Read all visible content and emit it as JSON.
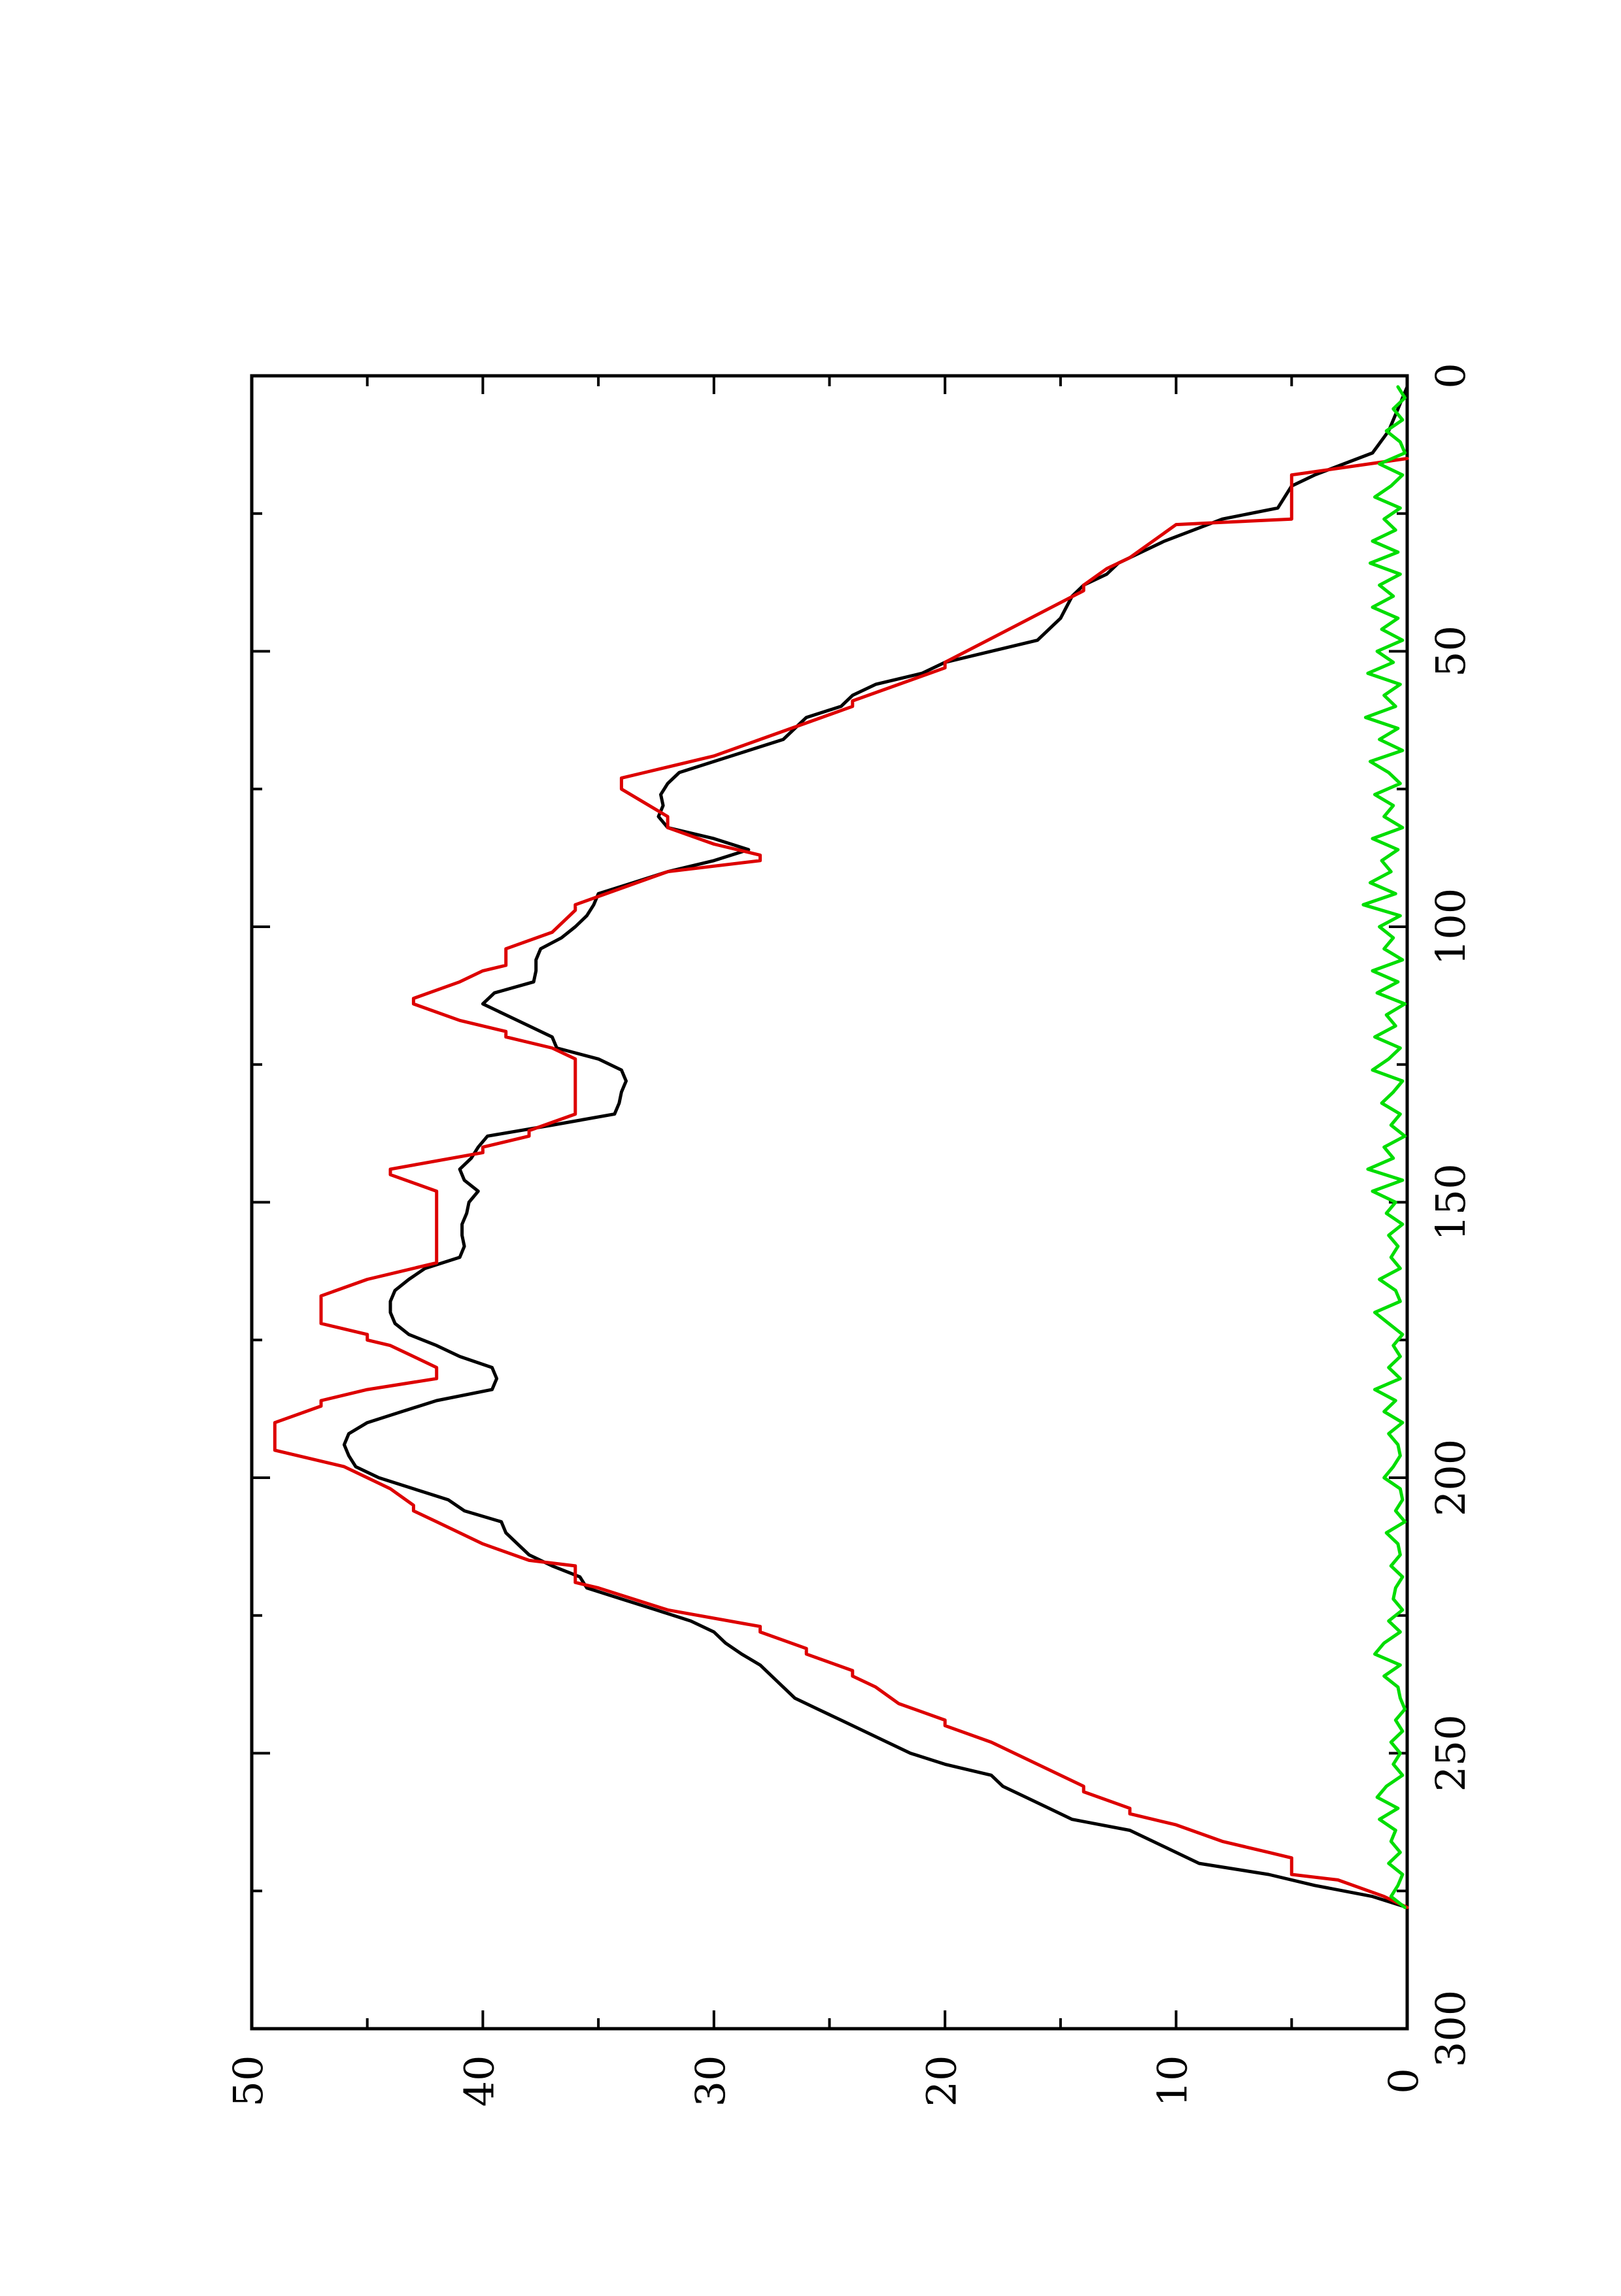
{
  "chart_data": {
    "type": "line",
    "title": "",
    "xlabel": "",
    "ylabel": "",
    "xlim": [
      0,
      300
    ],
    "ylim": [
      0,
      50
    ],
    "x_ticks": [
      0,
      50,
      100,
      150,
      200,
      250,
      300
    ],
    "x_tick_labels": [
      "0",
      "50",
      "100",
      "150",
      "200",
      "250",
      "300"
    ],
    "y_ticks": [
      0,
      10,
      20,
      30,
      40,
      50
    ],
    "y_tick_labels": [
      "0",
      "10",
      "20",
      "30",
      "40",
      "50"
    ],
    "orientation": "rotated-90-ccw",
    "grid": false,
    "legend": "none",
    "colors": {
      "black": "#000000",
      "red": "#dd0000",
      "green": "#00dd00"
    },
    "series": [
      {
        "color": "#000000",
        "x": [
          2,
          6,
          10,
          14,
          18,
          20,
          24,
          26,
          30,
          32,
          34,
          36,
          38,
          40,
          44,
          48,
          52,
          54,
          56,
          58,
          60,
          62,
          64,
          66,
          68,
          70,
          72,
          74,
          76,
          78,
          80,
          82,
          84,
          86,
          88,
          90,
          92,
          94,
          96,
          98,
          100,
          102,
          104,
          106,
          108,
          110,
          112,
          114,
          116,
          118,
          120,
          122,
          124,
          126,
          128,
          130,
          132,
          134,
          136,
          138,
          140,
          142,
          144,
          146,
          148,
          150,
          152,
          154,
          156,
          158,
          160,
          162,
          164,
          166,
          168,
          170,
          172,
          174,
          176,
          178,
          180,
          182,
          184,
          186,
          188,
          190,
          192,
          194,
          196,
          198,
          200,
          202,
          204,
          206,
          208,
          210,
          212,
          214,
          216,
          218,
          220,
          222,
          224,
          226,
          228,
          230,
          232,
          234,
          236,
          238,
          240,
          242,
          244,
          246,
          248,
          250,
          252,
          254,
          256,
          258,
          260,
          262,
          264,
          266,
          268,
          270,
          272,
          274,
          276,
          278
        ],
        "values": [
          0,
          0.4,
          0.8,
          1.5,
          4,
          5,
          5.6,
          8,
          10.5,
          11.5,
          12.5,
          13,
          14,
          14.5,
          15,
          16,
          20,
          21,
          23,
          24,
          24.5,
          26,
          26.5,
          27,
          28.5,
          30,
          31.5,
          32,
          32.3,
          32.2,
          32.4,
          32,
          30,
          28.5,
          30,
          32,
          33.5,
          35,
          35.2,
          35.5,
          36,
          36.6,
          37.5,
          37.7,
          37.7,
          37.8,
          39.5,
          40,
          39,
          38,
          37,
          36.8,
          35,
          34,
          33.8,
          34,
          34.1,
          34.3,
          37,
          39.8,
          40.2,
          40.5,
          41,
          40.8,
          40.2,
          40.6,
          40.7,
          40.9,
          40.9,
          40.8,
          41,
          42.5,
          43.2,
          43.8,
          44,
          44,
          43.8,
          43.2,
          42,
          41,
          39.6,
          39.4,
          39.6,
          42,
          43.5,
          45,
          45.8,
          46,
          45.8,
          45.5,
          44.5,
          43,
          41.5,
          40.8,
          39.2,
          39,
          38.5,
          38,
          37,
          35.8,
          35.5,
          34,
          32.5,
          31,
          30,
          29.5,
          28.8,
          28,
          27.5,
          27,
          26.5,
          25.5,
          24.5,
          23.5,
          22.5,
          21.5,
          20,
          18,
          17.5,
          16.5,
          15.5,
          14.5,
          12,
          11,
          10,
          9,
          6,
          4,
          1.5,
          0
        ]
      },
      {
        "color": "#dd0000",
        "x": [
          15,
          18,
          26,
          27,
          30,
          33,
          35,
          38,
          39,
          52,
          53,
          56,
          59,
          60,
          63,
          66,
          69,
          72,
          73,
          75,
          80,
          82,
          85,
          87,
          88,
          90,
          93,
          96,
          97,
          101,
          104,
          107,
          108,
          110,
          113,
          114,
          117,
          119,
          120,
          122,
          124,
          126,
          130,
          134,
          137,
          138,
          140,
          141,
          144,
          145,
          148,
          150,
          153,
          160,
          161,
          164,
          167,
          170,
          172,
          174,
          175,
          176,
          178,
          180,
          182,
          184,
          186,
          187,
          190,
          191,
          195,
          196,
          198,
          202,
          205,
          206,
          208,
          212,
          215,
          216,
          219,
          220,
          224,
          227,
          228,
          231,
          232,
          235,
          236,
          238,
          241,
          244,
          245,
          248,
          254,
          256,
          257,
          260,
          261,
          263,
          266,
          268,
          269,
          272,
          273,
          276,
          278
        ],
        "values": [
          0,
          5,
          5,
          10,
          11,
          12,
          13,
          14,
          14,
          20,
          20,
          22,
          24,
          24,
          26,
          28,
          30,
          33,
          34,
          34,
          32,
          32,
          30,
          28,
          28,
          32,
          34,
          36,
          36,
          37,
          39,
          39,
          40,
          41,
          43,
          43,
          41,
          39,
          39,
          37,
          36,
          36,
          36,
          36,
          38,
          38,
          40,
          40,
          44,
          44,
          42,
          42,
          42,
          42,
          42,
          45,
          47,
          47,
          47,
          45,
          45,
          44,
          43,
          42,
          42,
          45,
          47,
          47,
          49,
          49,
          49,
          48,
          46,
          44,
          43,
          43,
          42,
          40,
          38,
          36,
          36,
          35,
          32,
          28,
          28,
          26,
          26,
          24,
          24,
          23,
          22,
          20,
          20,
          18,
          15,
          14,
          14,
          12,
          12,
          10,
          8,
          6,
          5,
          5,
          3,
          1,
          0
        ]
      },
      {
        "color": "#00dd00",
        "x": [
          2,
          4,
          6,
          8,
          10,
          12,
          14,
          16,
          18,
          20,
          22,
          24,
          26,
          28,
          30,
          32,
          34,
          36,
          38,
          40,
          42,
          44,
          46,
          48,
          50,
          52,
          54,
          56,
          58,
          60,
          62,
          64,
          66,
          68,
          70,
          72,
          74,
          76,
          78,
          80,
          82,
          84,
          86,
          88,
          90,
          92,
          94,
          96,
          98,
          100,
          102,
          104,
          106,
          108,
          110,
          112,
          114,
          116,
          118,
          120,
          122,
          124,
          126,
          128,
          130,
          132,
          134,
          136,
          138,
          140,
          142,
          144,
          146,
          148,
          150,
          152,
          154,
          156,
          158,
          160,
          162,
          164,
          166,
          168,
          170,
          172,
          174,
          176,
          178,
          180,
          182,
          184,
          186,
          188,
          190,
          192,
          194,
          196,
          198,
          200,
          202,
          204,
          206,
          208,
          210,
          212,
          214,
          216,
          218,
          220,
          222,
          224,
          226,
          228,
          230,
          232,
          234,
          236,
          238,
          240,
          242,
          244,
          246,
          248,
          250,
          252,
          254,
          256,
          258,
          260,
          262,
          264,
          266,
          268,
          270,
          272,
          274,
          276,
          278
        ],
        "values": [
          0.4,
          0.1,
          0.6,
          0.2,
          0.9,
          0.3,
          0.1,
          1.2,
          0.2,
          0.7,
          1.4,
          0.3,
          1.0,
          0.5,
          1.5,
          0.4,
          1.6,
          0.3,
          1.2,
          0.6,
          1.5,
          0.4,
          1.1,
          0.2,
          1.3,
          0.6,
          1.7,
          0.3,
          1.0,
          0.5,
          1.8,
          0.4,
          1.2,
          0.2,
          1.6,
          0.8,
          0.3,
          1.4,
          0.6,
          1.0,
          0.2,
          1.5,
          0.4,
          1.1,
          0.7,
          1.6,
          0.5,
          1.9,
          0.3,
          1.2,
          0.6,
          1.0,
          0.2,
          1.5,
          0.4,
          1.3,
          0.1,
          0.9,
          0.5,
          1.4,
          0.3,
          0.8,
          1.5,
          0.2,
          0.6,
          1.1,
          0.3,
          0.7,
          0.1,
          1.0,
          0.6,
          1.7,
          0.2,
          1.5,
          0.5,
          0.9,
          0.2,
          0.8,
          0.4,
          0.7,
          0.3,
          1.2,
          0.5,
          0.3,
          1.4,
          0.8,
          0.2,
          0.6,
          0.3,
          0.8,
          0.3,
          1.4,
          0.5,
          1.0,
          0.2,
          0.8,
          0.4,
          0.3,
          0.6,
          1.0,
          0.3,
          0.2,
          0.5,
          0.1,
          0.9,
          0.4,
          0.3,
          0.7,
          0.2,
          0.5,
          0.6,
          0.2,
          0.8,
          0.3,
          1.0,
          1.4,
          0.3,
          1.0,
          0.4,
          0.3,
          0.1,
          0.5,
          0.2,
          0.7,
          0.3,
          0.6,
          0.2,
          0.9,
          1.3,
          0.4,
          1.2,
          0.5,
          0.7,
          0.3,
          0.8,
          0.2,
          0.4,
          0.7,
          0.1
        ]
      }
    ]
  }
}
